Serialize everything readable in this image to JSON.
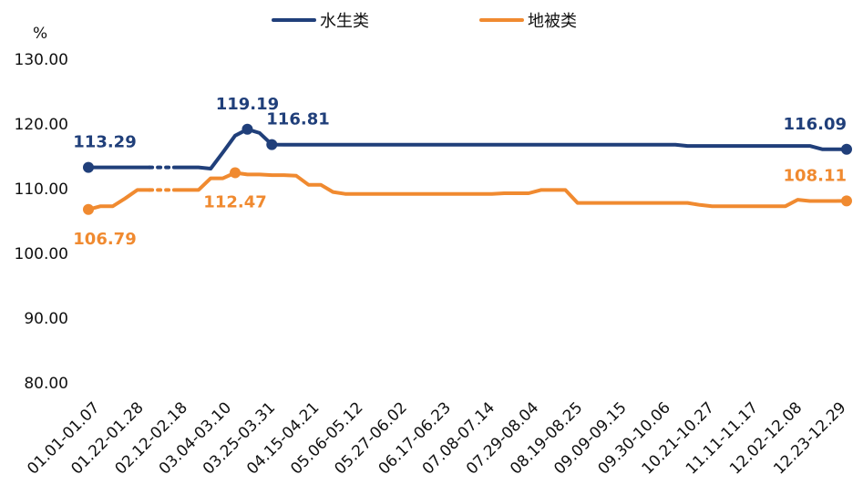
{
  "chart_data": {
    "type": "line",
    "unit_label": "%",
    "ylim": [
      80,
      130
    ],
    "y_ticks": [
      "130.00",
      "120.00",
      "110.00",
      "100.00",
      "90.00",
      "80.00"
    ],
    "y_tick_values": [
      130,
      120,
      110,
      100,
      90,
      80
    ],
    "grid": false,
    "legend_position": "top",
    "x_ticks": [
      "01.01-01.07",
      "01.22-01.28",
      "02.12-02.18",
      "03.04-03.10",
      "03.25-03.31",
      "04.15-04.21",
      "05.06-05.12",
      "05.27-06.02",
      "06.17-06.23",
      "07.08-07.14",
      "07.29-08.04",
      "08.19-08.25",
      "09.09-09.15",
      "09.30-10.06",
      "10.21-10.27",
      "11.11-11.17",
      "12.02-12.08",
      "12.23-12.29"
    ],
    "series": [
      {
        "name": "水生类",
        "color": "#203f7a",
        "values": [
          113.29,
          113.3,
          113.3,
          113.3,
          113.3,
          113.3,
          null,
          113.3,
          113.3,
          113.3,
          113.1,
          115.6,
          118.2,
          119.19,
          118.6,
          116.81,
          116.8,
          116.8,
          116.8,
          116.8,
          116.8,
          116.8,
          116.8,
          116.8,
          116.8,
          116.8,
          116.8,
          116.8,
          116.8,
          116.8,
          116.8,
          116.8,
          116.8,
          116.8,
          116.8,
          116.8,
          116.8,
          116.8,
          116.8,
          116.8,
          116.8,
          116.8,
          116.8,
          116.8,
          116.8,
          116.8,
          116.8,
          116.8,
          116.8,
          116.6,
          116.6,
          116.6,
          116.6,
          116.6,
          116.6,
          116.6,
          116.6,
          116.6,
          116.6,
          116.6,
          116.1,
          116.1,
          116.09
        ],
        "labels": [
          {
            "index": 0,
            "text": "113.29",
            "pos": "above"
          },
          {
            "index": 13,
            "text": "119.19",
            "pos": "above"
          },
          {
            "index": 15,
            "text": "116.81",
            "pos": "above-right"
          },
          {
            "index": 62,
            "text": "116.09",
            "pos": "above-left"
          }
        ]
      },
      {
        "name": "地被类",
        "color": "#f08a30",
        "values": [
          106.79,
          107.3,
          107.3,
          108.5,
          109.8,
          109.8,
          null,
          109.8,
          109.8,
          109.8,
          111.6,
          111.6,
          112.47,
          112.2,
          112.2,
          112.1,
          112.1,
          112.0,
          110.6,
          110.6,
          109.5,
          109.2,
          109.2,
          109.2,
          109.2,
          109.2,
          109.2,
          109.2,
          109.2,
          109.2,
          109.2,
          109.2,
          109.2,
          109.2,
          109.3,
          109.3,
          109.3,
          109.8,
          109.8,
          109.8,
          107.8,
          107.8,
          107.8,
          107.8,
          107.8,
          107.8,
          107.8,
          107.8,
          107.8,
          107.8,
          107.5,
          107.3,
          107.3,
          107.3,
          107.3,
          107.3,
          107.3,
          107.3,
          108.3,
          108.1,
          108.1,
          108.1,
          108.11
        ],
        "labels": [
          {
            "index": 0,
            "text": "106.79",
            "pos": "below"
          },
          {
            "index": 12,
            "text": "112.47",
            "pos": "below"
          },
          {
            "index": 62,
            "text": "108.11",
            "pos": "above-left"
          }
        ]
      }
    ]
  }
}
